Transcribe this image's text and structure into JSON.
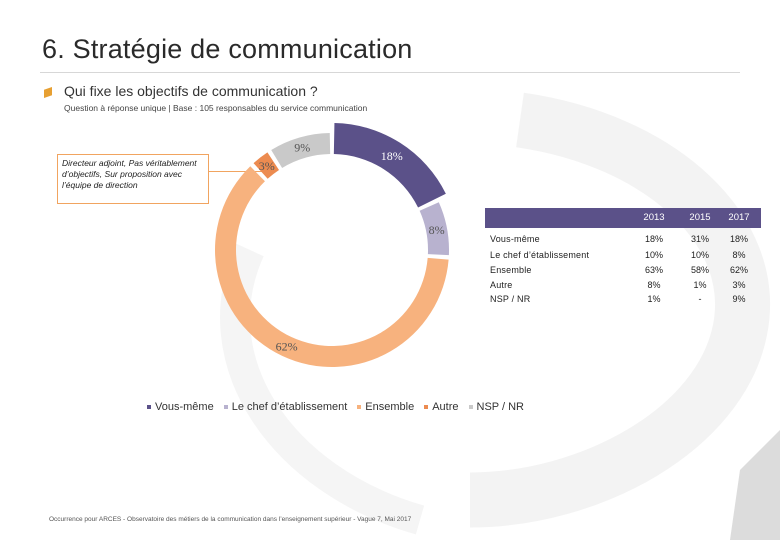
{
  "header": {
    "title": "6. Stratégie de communication",
    "question": "Qui fixe les objectifs de communication ?",
    "base": "Question à réponse unique | Base : 105 responsables du service communication"
  },
  "callout": {
    "text": "Directeur adjoint, Pas véritablement d’objectifs, Sur proposition avec l’équipe de direction"
  },
  "chart_data": {
    "type": "pie",
    "donut": true,
    "slices": [
      {
        "name": "Vous-même",
        "value": 18,
        "label": "18%",
        "color": "#5b5189"
      },
      {
        "name": "Le chef d’établissement",
        "value": 8,
        "label": "8%",
        "color": "#b8b2cf"
      },
      {
        "name": "Ensemble",
        "value": 62,
        "label": "62%",
        "color": "#f7b27e"
      },
      {
        "name": "Autre",
        "value": 3,
        "label": "3%",
        "color": "#ec8b50"
      },
      {
        "name": "NSP / NR",
        "value": 9,
        "label": "9%",
        "color": "#c9c9c9"
      }
    ],
    "table": {
      "years": [
        "2013",
        "2015",
        "2017"
      ],
      "rows": [
        {
          "label": "Vous-même",
          "values": [
            "18%",
            "31%",
            "18%"
          ]
        },
        {
          "label": "Le chef d’établissement",
          "values": [
            "10%",
            "10%",
            "8%"
          ]
        },
        {
          "label": "Ensemble",
          "values": [
            "63%",
            "58%",
            "62%"
          ]
        },
        {
          "label": "Autre",
          "values": [
            "8%",
            "1%",
            "3%"
          ]
        },
        {
          "label": "NSP / NR",
          "values": [
            "1%",
            "-",
            "9%"
          ]
        }
      ]
    }
  },
  "source": "Occurrence pour ARCES - Observatoire des métiers de la communication dans l’enseignement supérieur - Vague 7, Mai 2017"
}
